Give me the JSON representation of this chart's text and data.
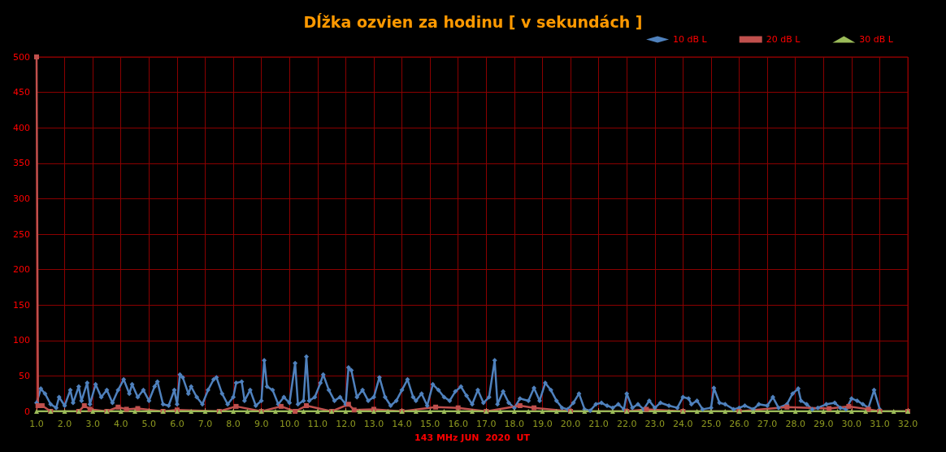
{
  "chart_data": {
    "type": "line",
    "title": "Dĺžka ozvien za hodinu [ v sekundách ]",
    "xlabel": "143 MHz JUN  2020  UT",
    "xlim": [
      1,
      32
    ],
    "xticks": [
      {
        "value": 1,
        "label": "1.0"
      },
      {
        "value": 2,
        "label": "2.0"
      },
      {
        "value": 3,
        "label": "3.0"
      },
      {
        "value": 4,
        "label": "4.0"
      },
      {
        "value": 5,
        "label": "5.0"
      },
      {
        "value": 6,
        "label": "6.0"
      },
      {
        "value": 7,
        "label": "7.0"
      },
      {
        "value": 8,
        "label": "8.0"
      },
      {
        "value": 9,
        "label": "9.0"
      },
      {
        "value": 10,
        "label": "10.0"
      },
      {
        "value": 11,
        "label": "11.0"
      },
      {
        "value": 12,
        "label": "12.0"
      },
      {
        "value": 13,
        "label": "13.0"
      },
      {
        "value": 14,
        "label": "14.0"
      },
      {
        "value": 15,
        "label": "15.0"
      },
      {
        "value": 16,
        "label": "16.0"
      },
      {
        "value": 17,
        "label": "17.0"
      },
      {
        "value": 18,
        "label": "18.0"
      },
      {
        "value": 19,
        "label": "19.0"
      },
      {
        "value": 20,
        "label": "20.0"
      },
      {
        "value": 21,
        "label": "21.0"
      },
      {
        "value": 22,
        "label": "22.0"
      },
      {
        "value": 23,
        "label": "23.0"
      },
      {
        "value": 24,
        "label": "24.0"
      },
      {
        "value": 25,
        "label": "25.0"
      },
      {
        "value": 26,
        "label": "26.0"
      },
      {
        "value": 27,
        "label": "27.0"
      },
      {
        "value": 28,
        "label": "28.0"
      },
      {
        "value": 29,
        "label": "29.0"
      },
      {
        "value": 30,
        "label": "30.0"
      },
      {
        "value": 31,
        "label": "31.0"
      },
      {
        "value": 32,
        "label": "32.0"
      }
    ],
    "ylim": [
      0,
      500
    ],
    "yticks": [
      0,
      50,
      100,
      150,
      200,
      250,
      300,
      350,
      400,
      450,
      500
    ],
    "grid": true,
    "legend": "top right",
    "line_style": "solid",
    "series": [
      {
        "name": "10 dB L",
        "color": "#4f81bd",
        "marker": "diamond",
        "x": [
          1.0,
          1.15,
          1.3,
          1.5,
          1.7,
          1.8,
          2.0,
          2.2,
          2.3,
          2.5,
          2.6,
          2.8,
          2.9,
          3.1,
          3.3,
          3.5,
          3.7,
          3.9,
          4.1,
          4.3,
          4.4,
          4.6,
          4.8,
          5.0,
          5.2,
          5.3,
          5.5,
          5.7,
          5.9,
          6.0,
          6.1,
          6.2,
          6.4,
          6.5,
          6.7,
          6.9,
          7.1,
          7.3,
          7.4,
          7.6,
          7.8,
          8.0,
          8.1,
          8.3,
          8.4,
          8.6,
          8.8,
          9.0,
          9.1,
          9.2,
          9.4,
          9.6,
          9.8,
          10.0,
          10.2,
          10.3,
          10.5,
          10.6,
          10.7,
          10.9,
          11.1,
          11.2,
          11.4,
          11.6,
          11.8,
          12.0,
          12.1,
          12.2,
          12.4,
          12.6,
          12.8,
          13.0,
          13.2,
          13.4,
          13.6,
          13.8,
          14.0,
          14.2,
          14.4,
          14.5,
          14.7,
          14.9,
          15.1,
          15.3,
          15.5,
          15.7,
          15.9,
          16.1,
          16.3,
          16.5,
          16.7,
          16.9,
          17.1,
          17.3,
          17.4,
          17.6,
          17.8,
          18.0,
          18.2,
          18.5,
          18.7,
          18.9,
          19.1,
          19.3,
          19.5,
          19.7,
          19.9,
          20.1,
          20.3,
          20.5,
          20.7,
          20.9,
          21.1,
          21.3,
          21.5,
          21.7,
          21.9,
          22.0,
          22.2,
          22.4,
          22.6,
          22.8,
          23.0,
          23.2,
          23.5,
          23.8,
          24.0,
          24.2,
          24.3,
          24.5,
          24.7,
          25.0,
          25.1,
          25.3,
          25.5,
          25.8,
          26.0,
          26.2,
          26.5,
          26.7,
          27.0,
          27.2,
          27.4,
          27.7,
          27.9,
          28.1,
          28.2,
          28.4,
          28.6,
          28.8,
          29.1,
          29.4,
          29.6,
          29.8,
          30.0,
          30.2,
          30.4,
          30.6,
          30.8,
          31.0
        ],
        "values": [
          12,
          32,
          25,
          10,
          5,
          20,
          8,
          30,
          12,
          35,
          15,
          40,
          10,
          38,
          20,
          30,
          12,
          30,
          45,
          25,
          38,
          20,
          30,
          15,
          35,
          42,
          10,
          8,
          30,
          10,
          52,
          48,
          25,
          35,
          20,
          10,
          30,
          45,
          48,
          25,
          10,
          20,
          40,
          42,
          15,
          30,
          8,
          15,
          72,
          35,
          30,
          10,
          20,
          12,
          68,
          10,
          15,
          77,
          15,
          20,
          40,
          52,
          30,
          15,
          20,
          10,
          62,
          58,
          20,
          30,
          15,
          20,
          48,
          20,
          8,
          15,
          30,
          45,
          20,
          15,
          25,
          8,
          38,
          30,
          20,
          15,
          28,
          35,
          22,
          10,
          30,
          12,
          20,
          72,
          10,
          28,
          12,
          5,
          18,
          15,
          33,
          15,
          40,
          30,
          15,
          5,
          3,
          12,
          25,
          3,
          1,
          10,
          12,
          8,
          5,
          10,
          3,
          25,
          5,
          10,
          3,
          15,
          5,
          12,
          8,
          5,
          20,
          18,
          10,
          15,
          3,
          5,
          33,
          12,
          10,
          3,
          5,
          8,
          3,
          10,
          8,
          20,
          5,
          10,
          25,
          32,
          15,
          10,
          3,
          5,
          10,
          12,
          5,
          3,
          18,
          15,
          10,
          5,
          30,
          3
        ]
      },
      {
        "name": "20 dB L",
        "color": "#c0504d",
        "marker": "square",
        "x": [
          1.0,
          1.05,
          1.2,
          1.5,
          2.5,
          2.7,
          2.9,
          3.5,
          3.9,
          4.2,
          4.6,
          5.5,
          6.0,
          7.5,
          8.1,
          9.0,
          9.7,
          10.2,
          10.6,
          11.5,
          12.1,
          12.3,
          13.0,
          14.0,
          15.2,
          16.0,
          17.0,
          18.2,
          18.7,
          20.0,
          22.0,
          22.7,
          24.0,
          26.0,
          27.7,
          29.2,
          29.9,
          30.6,
          31.0,
          32.0
        ],
        "values": [
          500,
          8,
          8,
          0,
          0,
          8,
          3,
          0,
          6,
          3,
          4,
          0,
          2,
          0,
          7,
          0,
          7,
          0,
          8,
          0,
          10,
          2,
          3,
          0,
          6,
          5,
          0,
          8,
          5,
          0,
          0,
          3,
          0,
          0,
          6,
          4,
          7,
          3,
          0,
          0
        ]
      },
      {
        "name": "30 dB L",
        "color": "#9bbb59",
        "marker": "triangle",
        "x": [
          1,
          1.5,
          2,
          2.5,
          3,
          3.5,
          4,
          4.5,
          5,
          5.5,
          6,
          6.5,
          7,
          7.5,
          8,
          8.5,
          9,
          9.5,
          10,
          10.5,
          11,
          11.5,
          12,
          12.5,
          13,
          13.5,
          14,
          14.5,
          15,
          15.5,
          16,
          16.5,
          17,
          17.5,
          18,
          18.5,
          19,
          19.5,
          20,
          20.5,
          21,
          21.5,
          22,
          22.5,
          23,
          23.5,
          24,
          24.5,
          25,
          25.5,
          26,
          26.5,
          27,
          27.5,
          28,
          28.5,
          29,
          29.5,
          30,
          30.5,
          31,
          31.5,
          32
        ],
        "values": [
          0,
          0,
          0,
          0,
          0,
          0,
          0,
          0,
          0,
          0,
          0,
          0,
          0,
          0,
          0,
          0,
          0,
          0,
          0,
          0,
          0,
          0,
          0,
          0,
          0,
          0,
          0,
          0,
          0,
          0,
          0,
          0,
          0,
          0,
          0,
          0,
          0,
          0,
          0,
          0,
          0,
          0,
          0,
          0,
          0,
          0,
          0,
          0,
          0,
          0,
          0,
          0,
          0,
          0,
          0,
          0,
          0,
          0,
          0,
          0,
          0,
          0,
          0
        ]
      }
    ]
  }
}
